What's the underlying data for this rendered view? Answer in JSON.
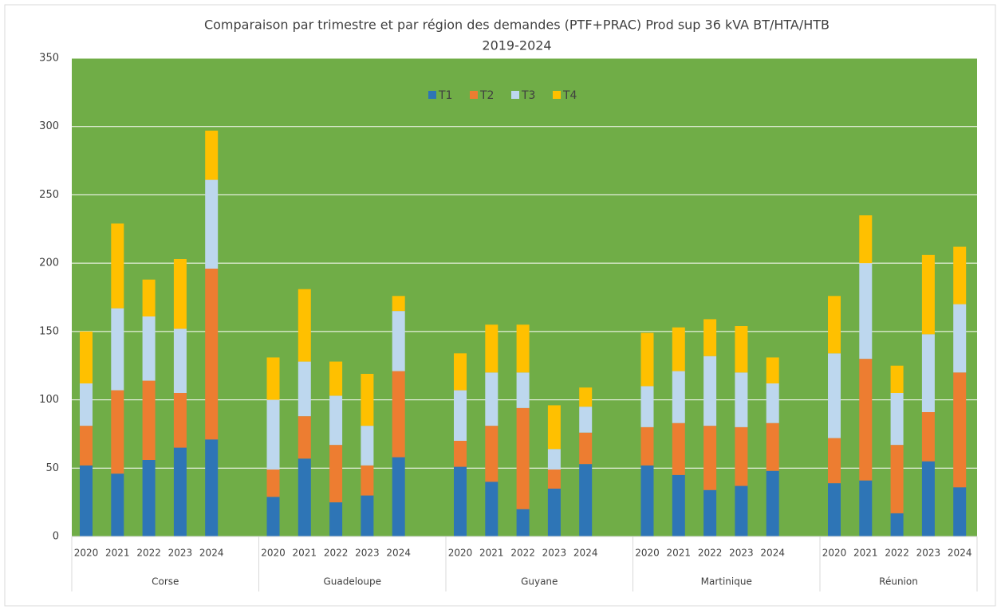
{
  "chart_data": {
    "type": "stacked_bar",
    "title": [
      "Comparaison par trimestre et par région des demandes (PTF+PRAC)  Prod sup 36 kVA BT/HTA/HTB",
      "2019-2024"
    ],
    "groups": [
      {
        "name": "Corse",
        "categories": [
          "2020",
          "2021",
          "2022",
          "2023",
          "2024"
        ]
      },
      {
        "name": "Guadeloupe",
        "categories": [
          "2020",
          "2021",
          "2022",
          "2023",
          "2024"
        ]
      },
      {
        "name": "Guyane",
        "categories": [
          "2020",
          "2021",
          "2022",
          "2023",
          "2024"
        ]
      },
      {
        "name": "Martinique",
        "categories": [
          "2020",
          "2021",
          "2022",
          "2023",
          "2024"
        ]
      },
      {
        "name": "Réunion",
        "categories": [
          "2020",
          "2021",
          "2022",
          "2023",
          "2024"
        ]
      }
    ],
    "series": [
      {
        "name": "T1",
        "color": "#2e75b6",
        "values": [
          52,
          46,
          56,
          65,
          71,
          29,
          57,
          25,
          30,
          58,
          51,
          40,
          20,
          35,
          53,
          52,
          45,
          34,
          37,
          48,
          39,
          41,
          17,
          55,
          36
        ]
      },
      {
        "name": "T2",
        "color": "#ed7d31",
        "values": [
          29,
          61,
          58,
          40,
          125,
          20,
          31,
          42,
          22,
          63,
          19,
          41,
          74,
          14,
          23,
          28,
          38,
          47,
          43,
          35,
          33,
          89,
          50,
          36,
          84
        ]
      },
      {
        "name": "T3",
        "color": "#bdd7ee",
        "values": [
          31,
          60,
          47,
          47,
          65,
          51,
          40,
          36,
          29,
          44,
          37,
          39,
          26,
          15,
          19,
          30,
          38,
          51,
          40,
          29,
          62,
          70,
          38,
          57,
          50
        ]
      },
      {
        "name": "T4",
        "color": "#ffc000",
        "values": [
          38,
          62,
          27,
          51,
          36,
          31,
          53,
          25,
          38,
          11,
          27,
          35,
          35,
          32,
          14,
          39,
          32,
          27,
          34,
          19,
          42,
          35,
          20,
          58,
          42
        ]
      }
    ],
    "ylim": [
      0,
      350
    ],
    "yticks": [
      0,
      50,
      100,
      150,
      200,
      250,
      300,
      350
    ],
    "grid": true,
    "plot_background": "#70ad47",
    "legend": "top"
  }
}
